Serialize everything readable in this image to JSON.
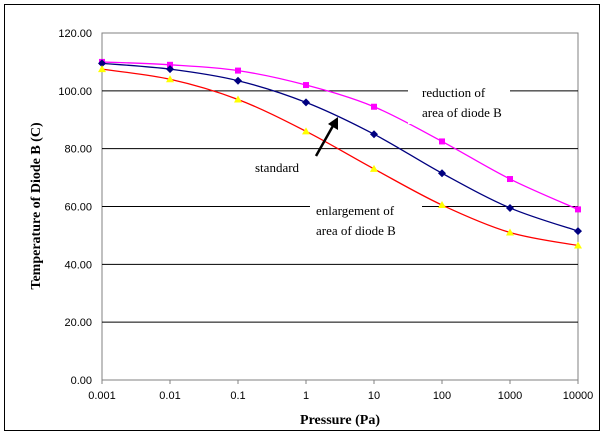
{
  "chart_data": {
    "type": "line",
    "title": "",
    "xlabel": "Pressure  (Pa)",
    "ylabel": "Temperature of Diode B  (C)",
    "x_scale": "log",
    "categories": [
      "0.001",
      "0.01",
      "0.1",
      "1",
      "10",
      "100",
      "1000",
      "10000"
    ],
    "y_ticks": [
      "0.00",
      "20.00",
      "40.00",
      "60.00",
      "80.00",
      "100.00",
      "120.00"
    ],
    "ylim": [
      0,
      120
    ],
    "grid": "horizontal",
    "series": [
      {
        "name": "reduction of area of diode B",
        "color": "#ff00ff",
        "marker": "square",
        "values": [
          110,
          109,
          107,
          102,
          94.5,
          82.5,
          69.5,
          59
        ]
      },
      {
        "name": "standard",
        "color": "#000080",
        "marker": "diamond",
        "values": [
          109.5,
          107.5,
          103.5,
          96,
          85,
          71.5,
          59.5,
          51.5
        ]
      },
      {
        "name": "enlargement of area of diode B",
        "color": "#ff0000",
        "marker": "triangle",
        "marker_color": "#ffff00",
        "values": [
          107.5,
          104,
          97,
          86,
          73,
          60.5,
          51,
          46.5
        ]
      }
    ],
    "annotations": [
      {
        "lines": [
          "reduction of",
          "area of diode B"
        ]
      },
      {
        "lines": [
          "standard"
        ]
      },
      {
        "lines": [
          "enlargement of",
          "area of diode B"
        ]
      }
    ]
  }
}
